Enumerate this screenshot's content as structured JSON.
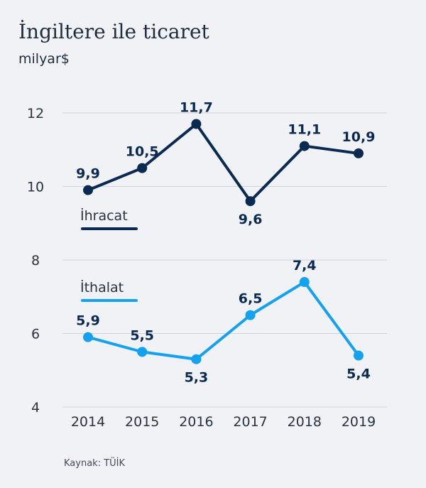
{
  "chart_data": {
    "type": "line",
    "title": "İngiltere ile ticaret",
    "ylabel": "milyar$",
    "xlabel": "",
    "x": [
      "2014",
      "2015",
      "2016",
      "2017",
      "2018",
      "2019"
    ],
    "ylim": [
      4,
      12
    ],
    "yticks": [
      4,
      6,
      8,
      10,
      12
    ],
    "grid": true,
    "legend": "inline",
    "series": [
      {
        "name": "İhracat",
        "color": "#0b2a52",
        "values": [
          9.9,
          10.5,
          11.7,
          9.6,
          11.1,
          10.9
        ],
        "labels": [
          "9,9",
          "10,5",
          "11,7",
          "9,6",
          "11,1",
          "10,9"
        ]
      },
      {
        "name": "İthalat",
        "color": "#14a1ef",
        "values": [
          5.9,
          5.5,
          5.3,
          6.5,
          7.4,
          5.4
        ],
        "labels": [
          "5,9",
          "5,5",
          "5,3",
          "6,5",
          "7,4",
          "5,4"
        ]
      }
    ],
    "source": "Kaynak: TÜİK"
  }
}
